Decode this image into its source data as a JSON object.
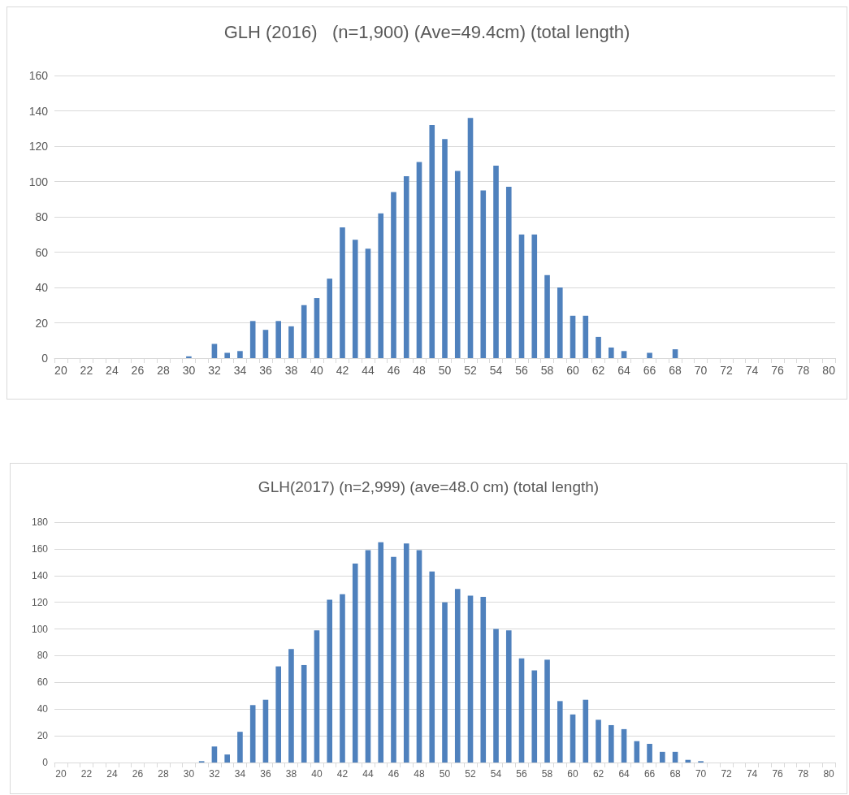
{
  "chart_data": [
    {
      "type": "bar",
      "title": "GLH (2016)   (n=1,900) (Ave=49.4cm) (total length)",
      "categories": [
        "20",
        null,
        "22",
        null,
        "24",
        null,
        "26",
        null,
        "28",
        null,
        "30",
        null,
        "32",
        null,
        "34",
        null,
        "36",
        null,
        "38",
        null,
        "40",
        null,
        "42",
        null,
        "44",
        null,
        "46",
        null,
        "48",
        null,
        "50",
        null,
        "52",
        null,
        "54",
        null,
        "56",
        null,
        "58",
        null,
        "60",
        null,
        "62",
        null,
        "64",
        null,
        "66",
        null,
        "68",
        null,
        "70",
        null,
        "72",
        null,
        "74",
        null,
        "76",
        null,
        "78",
        null,
        "80"
      ],
      "values": [
        0,
        0,
        0,
        0,
        0,
        0,
        0,
        0,
        0,
        0,
        1,
        0,
        8,
        3,
        4,
        21,
        16,
        21,
        18,
        30,
        34,
        45,
        74,
        67,
        62,
        82,
        94,
        103,
        111,
        132,
        124,
        106,
        136,
        95,
        109,
        97,
        70,
        70,
        47,
        40,
        24,
        24,
        12,
        6,
        4,
        0,
        3,
        0,
        5,
        0,
        0,
        0,
        0,
        0,
        0,
        0,
        0,
        0,
        0,
        0,
        0
      ],
      "color": "#4f81bd",
      "ylim": [
        0,
        160
      ],
      "yticks": [
        0,
        20,
        40,
        60,
        80,
        100,
        120,
        140,
        160
      ],
      "grid": "y"
    },
    {
      "type": "bar",
      "title": "GLH(2017) (n=2,999) (ave=48.0 cm) (total length)",
      "categories": [
        "20",
        null,
        "22",
        null,
        "24",
        null,
        "26",
        null,
        "28",
        null,
        "30",
        null,
        "32",
        null,
        "34",
        null,
        "36",
        null,
        "38",
        null,
        "40",
        null,
        "42",
        null,
        "44",
        null,
        "46",
        null,
        "48",
        null,
        "50",
        null,
        "52",
        null,
        "54",
        null,
        "56",
        null,
        "58",
        null,
        "60",
        null,
        "62",
        null,
        "64",
        null,
        "66",
        null,
        "68",
        null,
        "70",
        null,
        "72",
        null,
        "74",
        null,
        "76",
        null,
        "78",
        null,
        "80"
      ],
      "values": [
        0,
        0,
        0,
        0,
        0,
        0,
        0,
        0,
        0,
        0,
        0,
        1,
        12,
        6,
        23,
        43,
        47,
        72,
        85,
        73,
        99,
        122,
        126,
        149,
        159,
        165,
        154,
        164,
        159,
        143,
        120,
        130,
        125,
        124,
        100,
        99,
        78,
        69,
        77,
        46,
        36,
        47,
        32,
        28,
        25,
        16,
        14,
        8,
        8,
        2,
        1,
        0,
        0,
        0,
        0,
        0,
        0,
        0,
        0,
        0,
        0
      ],
      "color": "#4f81bd",
      "ylim": [
        0,
        180
      ],
      "yticks": [
        0,
        20,
        40,
        60,
        80,
        100,
        120,
        140,
        160,
        180
      ],
      "grid": "y"
    }
  ]
}
